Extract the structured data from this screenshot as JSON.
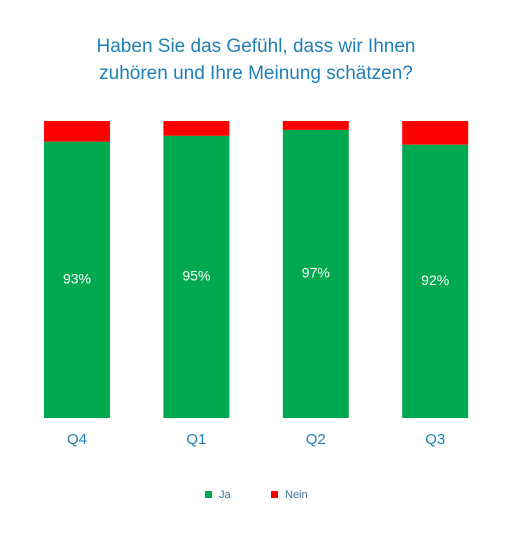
{
  "chart_data": {
    "type": "stacked-bar",
    "title": [
      "Haben Sie das Gefühl, dass wir Ihnen",
      "zuhören und Ihre Meinung schätzen?"
    ],
    "categories": [
      "Q4",
      "Q1",
      "Q2",
      "Q3"
    ],
    "ylim": [
      0,
      100
    ],
    "series": [
      {
        "name": "Ja",
        "color": "#00a94f",
        "values": [
          93,
          95,
          97,
          92
        ],
        "value_labels": [
          "93%",
          "95%",
          "97%",
          "92%"
        ]
      },
      {
        "name": "Nein",
        "color": "#ff0000",
        "values": [
          7,
          5,
          3,
          8
        ]
      }
    ]
  }
}
